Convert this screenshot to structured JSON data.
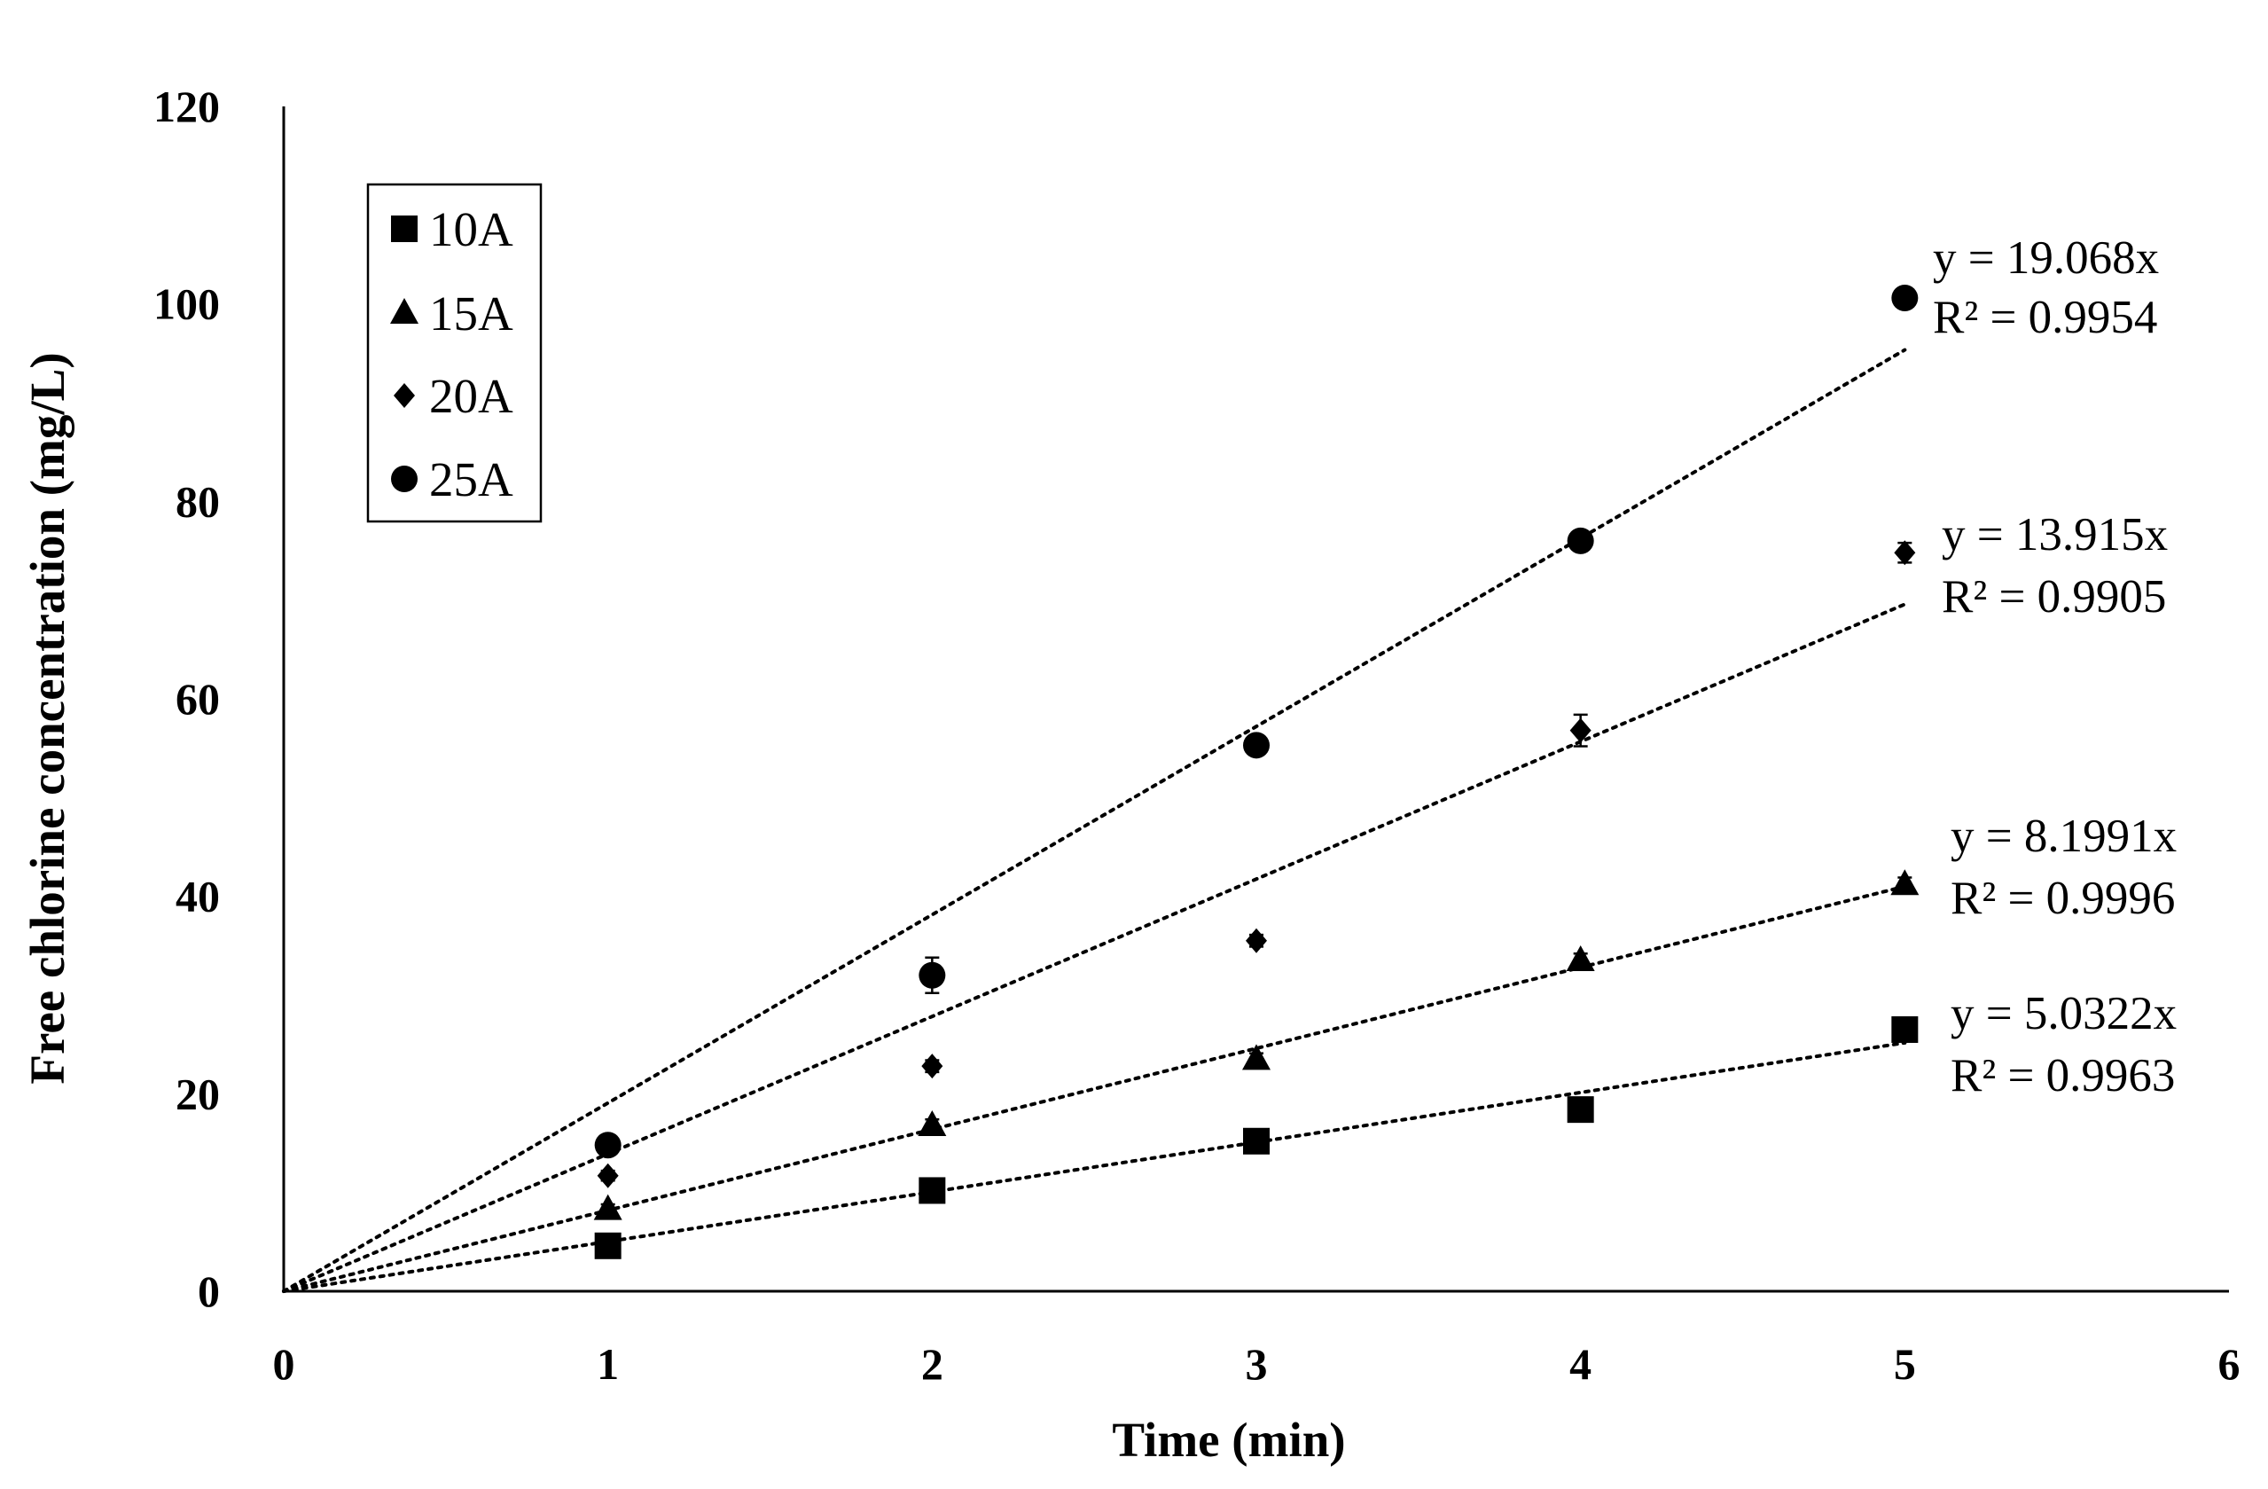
{
  "chart_data": {
    "type": "scatter",
    "title": "",
    "xlabel": "Time (min)",
    "ylabel": "Free chlorine concentration (mg/L)",
    "xlim": [
      0,
      6
    ],
    "ylim": [
      0,
      120
    ],
    "x_ticks": [
      "0",
      "1",
      "2",
      "3",
      "4",
      "5",
      "6"
    ],
    "y_ticks": [
      "0",
      "20",
      "40",
      "60",
      "80",
      "100",
      "120"
    ],
    "grid": false,
    "legend_position": "top-left",
    "x": [
      1,
      2,
      3,
      4,
      5
    ],
    "series": [
      {
        "name": "10A",
        "marker": "square",
        "values": [
          4.6,
          10.2,
          15.2,
          18.4,
          26.5
        ],
        "errors": [
          0.5,
          0.5,
          0.5,
          0.6,
          0.6
        ],
        "trendline": {
          "slope": 5.0322,
          "equation": "y = 5.0322x",
          "r2": "R² = 0.9963"
        }
      },
      {
        "name": "15A",
        "marker": "triangle",
        "values": [
          8.3,
          16.8,
          23.5,
          33.5,
          41.2
        ],
        "errors": [
          0.5,
          0.6,
          0.6,
          0.7,
          0.7
        ],
        "trendline": {
          "slope": 8.1991,
          "equation": "y = 8.1991x",
          "r2": "R² = 0.9996"
        }
      },
      {
        "name": "20A",
        "marker": "diamond",
        "values": [
          11.7,
          22.8,
          35.5,
          56.8,
          74.8
        ],
        "errors": [
          0.5,
          0.6,
          0.6,
          1.6,
          1.0
        ],
        "trendline": {
          "slope": 13.915,
          "equation": "y = 13.915x",
          "r2": "R² = 0.9905"
        }
      },
      {
        "name": "25A",
        "marker": "circle",
        "values": [
          14.8,
          32.0,
          55.3,
          76.0,
          100.6
        ],
        "errors": [
          0.6,
          1.8,
          0.7,
          0.8,
          0.7
        ],
        "trendline": {
          "slope": 19.068,
          "equation": "y = 19.068x",
          "r2": "R² = 0.9954"
        }
      }
    ]
  }
}
